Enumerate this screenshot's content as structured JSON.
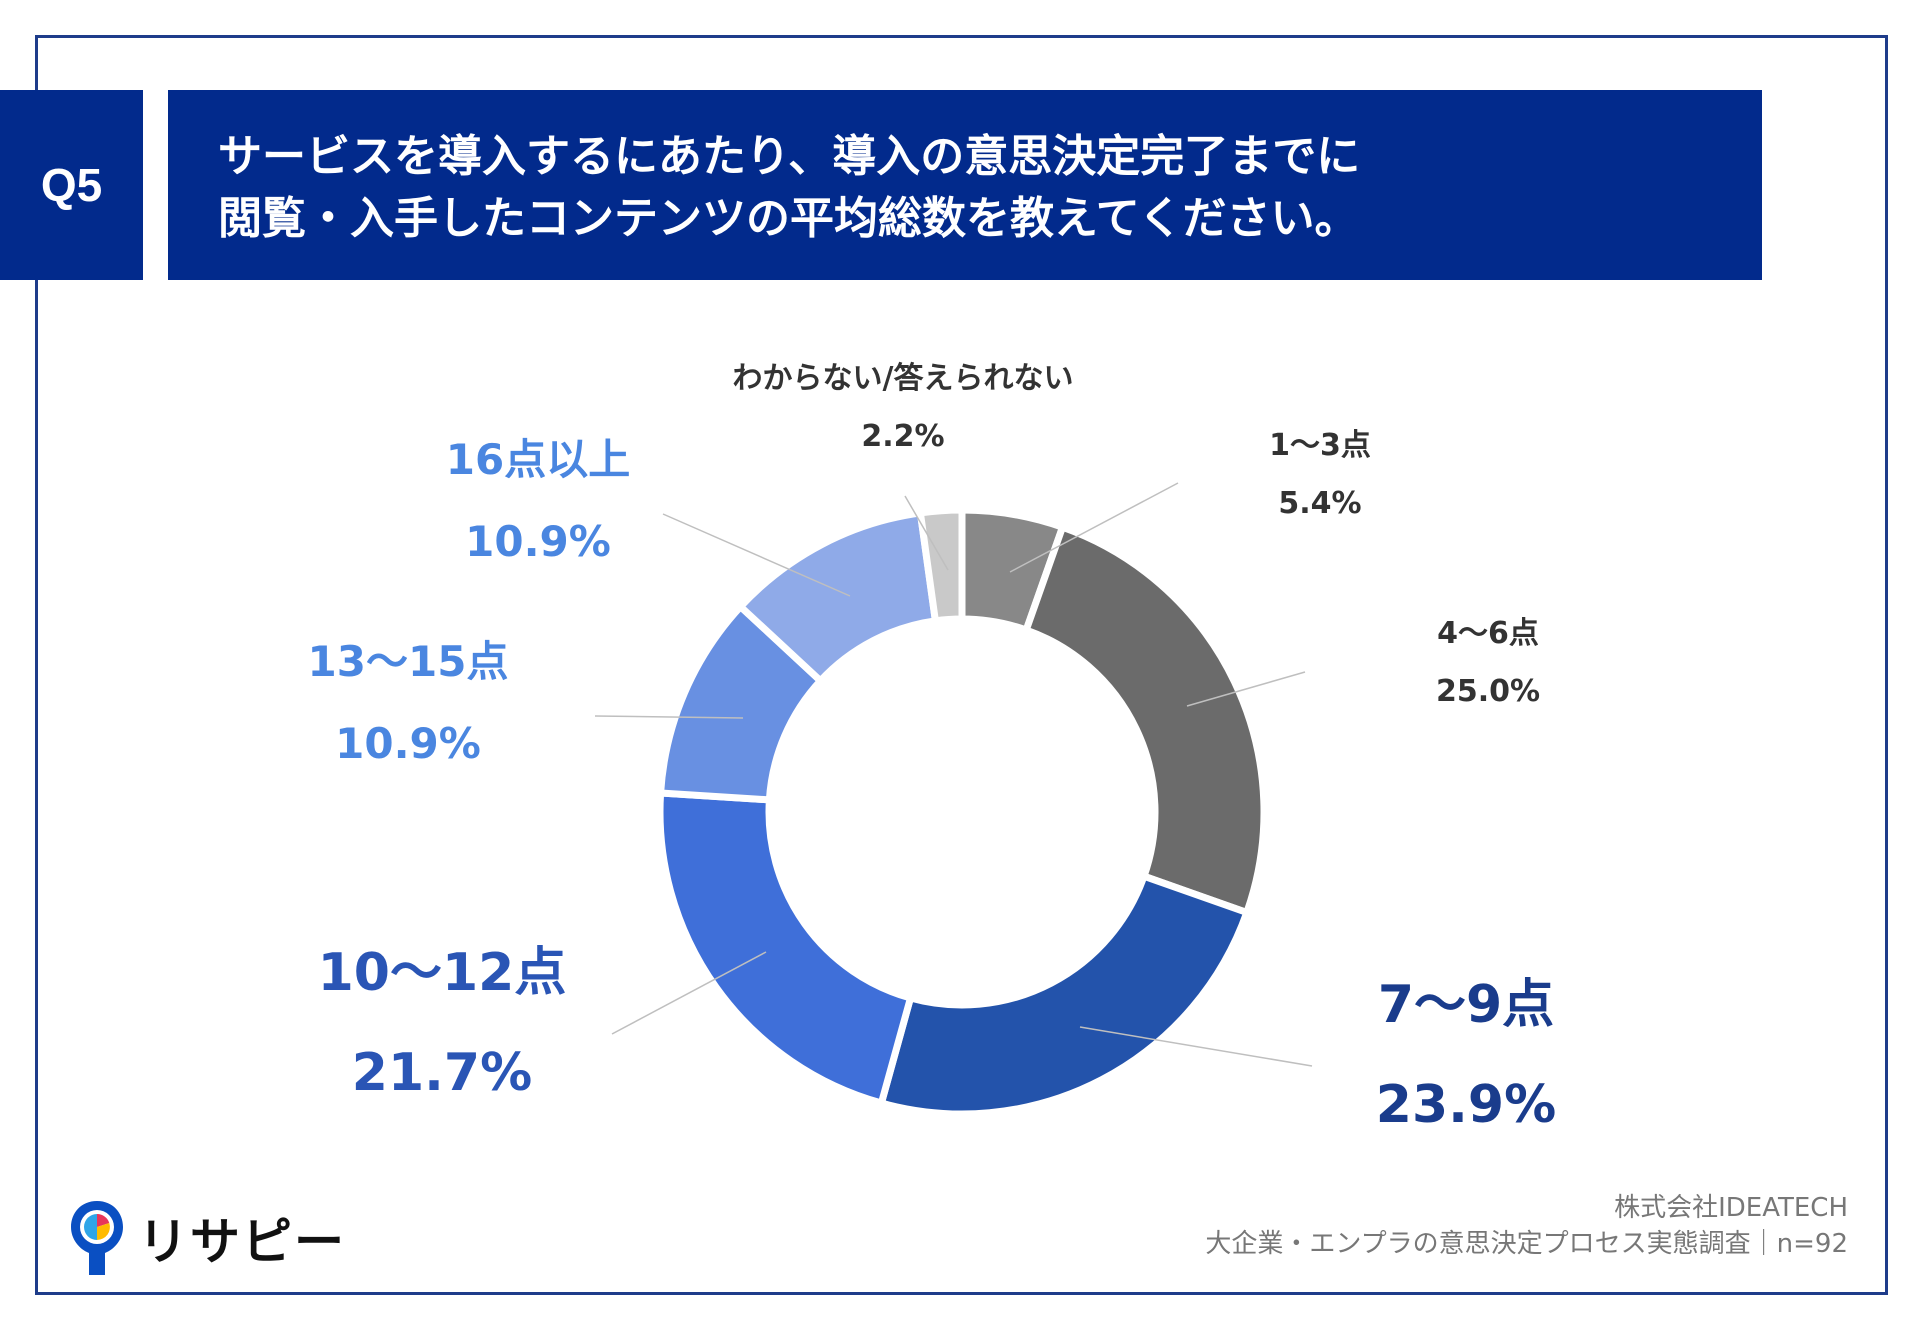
{
  "header": {
    "question_number": "Q5",
    "title_line1": "サービスを導入するにあたり、導入の意思決定完了までに",
    "title_line2": "閲覧・入手したコンテンツの平均総数を教えてください。"
  },
  "chart_data": {
    "type": "donut",
    "unit": "%",
    "slices": [
      {
        "label": "1〜3点",
        "value": 5.4,
        "display": "5.4%",
        "color": "#888888",
        "label_color": "#333333",
        "label_size": "small"
      },
      {
        "label": "4〜6点",
        "value": 25.0,
        "display": "25.0%",
        "color": "#6b6b6b",
        "label_color": "#333333",
        "label_size": "small"
      },
      {
        "label": "7〜9点",
        "value": 23.9,
        "display": "23.9%",
        "color": "#2353ab",
        "label_color": "#1a3c8c",
        "label_size": "large"
      },
      {
        "label": "10〜12点",
        "value": 21.7,
        "display": "21.7%",
        "color": "#3f6fd9",
        "label_color": "#2a55b5",
        "label_size": "large"
      },
      {
        "label": "13〜15点",
        "value": 10.9,
        "display": "10.9%",
        "color": "#6890e2",
        "label_color": "#4a86e0",
        "label_size": "medium"
      },
      {
        "label": "16点以上",
        "value": 10.9,
        "display": "10.9%",
        "color": "#8faae8",
        "label_color": "#4a86e0",
        "label_size": "medium"
      },
      {
        "label": "わからない/答えられない",
        "value": 2.2,
        "display": "2.2%",
        "color": "#c9c9c9",
        "label_color": "#333333",
        "label_size": "small"
      }
    ]
  },
  "footer": {
    "company": "株式会社IDEATECH",
    "survey": "大企業・エンプラの意思決定プロセス実態調査｜n=92"
  },
  "logo": {
    "text": "リサピー"
  },
  "colors": {
    "navy": "#022a8c",
    "frame": "#1e3c8a"
  }
}
